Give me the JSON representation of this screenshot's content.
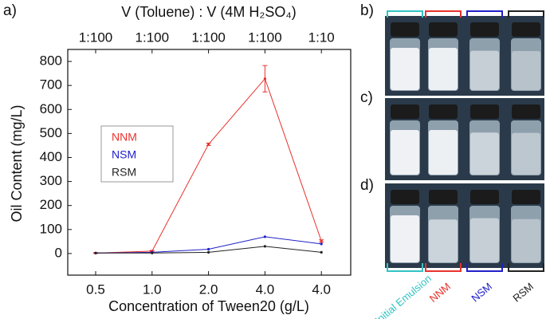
{
  "chart_data": {
    "type": "line",
    "x_label": "Concentration of Tween20 (g/L)",
    "y_label": "Oil Content (mg/L)",
    "top_axis_title": "V (Toluene) : V (4M H₂SO₄)",
    "categories": [
      "0.5",
      "1.0",
      "2.0",
      "4.0",
      "4.0"
    ],
    "top_categories": [
      "1:100",
      "1:100",
      "1:100",
      "1:100",
      "1:10"
    ],
    "series": [
      {
        "name": "NNM",
        "color": "#e8322d",
        "values": [
          2,
          10,
          455,
          728,
          52
        ],
        "errors": [
          2,
          3,
          5,
          55,
          5
        ]
      },
      {
        "name": "NSM",
        "color": "#2020c8",
        "values": [
          2,
          5,
          18,
          70,
          40
        ]
      },
      {
        "name": "RSM",
        "color": "#222222",
        "values": [
          2,
          2,
          5,
          30,
          5
        ]
      }
    ],
    "ylim": [
      -90,
      850
    ],
    "yticks": [
      0,
      100,
      200,
      300,
      400,
      500,
      600,
      700,
      800
    ]
  },
  "figure": {
    "panels": [
      "a)",
      "b)",
      "c)",
      "d)"
    ],
    "sample_labels": [
      "Initial Emulsion",
      "NNM",
      "NSM",
      "RSM"
    ]
  }
}
